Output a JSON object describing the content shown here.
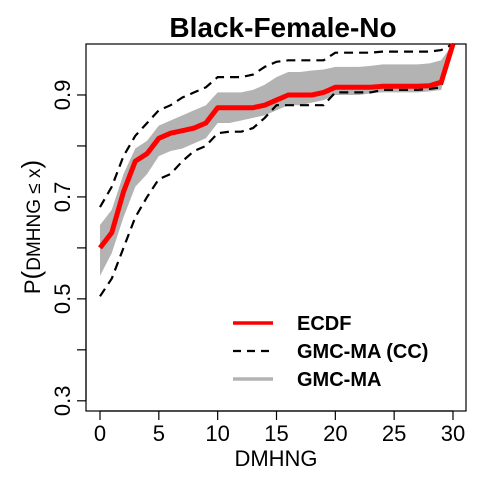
{
  "chart_data": {
    "type": "line",
    "title": "Black-Female-No",
    "xlabel": "DMHNG",
    "ylabel_prefix": "P",
    "ylabel_inner": "DMHNG ≤ x",
    "xlim": [
      0,
      30
    ],
    "ylim": [
      0.28,
      1.0
    ],
    "xticks": [
      0,
      5,
      10,
      15,
      20,
      25,
      30
    ],
    "yticks": [
      0.3,
      0.4,
      0.5,
      0.6,
      0.7,
      0.8,
      0.9
    ],
    "ytick_labels": [
      "0.3",
      "",
      "0.5",
      "",
      "0.7",
      "",
      "0.9"
    ],
    "x": [
      0,
      1,
      2,
      3,
      4,
      5,
      6,
      7,
      8,
      9,
      10,
      11,
      12,
      13,
      14,
      15,
      16,
      17,
      18,
      19,
      20,
      21,
      22,
      23,
      24,
      25,
      26,
      27,
      28,
      29,
      30
    ],
    "series": [
      {
        "name": "ECDF",
        "color": "#ff0000",
        "style": "solid",
        "values": [
          0.6,
          0.63,
          0.71,
          0.77,
          0.785,
          0.815,
          0.825,
          0.83,
          0.835,
          0.845,
          0.875,
          0.875,
          0.875,
          0.875,
          0.88,
          0.89,
          0.9,
          0.9,
          0.9,
          0.905,
          0.915,
          0.915,
          0.915,
          0.915,
          0.917,
          0.917,
          0.917,
          0.917,
          0.918,
          0.925,
          1.0
        ]
      },
      {
        "name": "GMC-MA (CC)",
        "color": "#000000",
        "style": "dashed",
        "upper": [
          0.68,
          0.72,
          0.78,
          0.82,
          0.845,
          0.87,
          0.88,
          0.895,
          0.905,
          0.915,
          0.935,
          0.935,
          0.935,
          0.94,
          0.955,
          0.965,
          0.968,
          0.968,
          0.968,
          0.968,
          0.983,
          0.983,
          0.983,
          0.983,
          0.985,
          0.985,
          0.985,
          0.985,
          0.985,
          0.988,
          1.0
        ],
        "lower": [
          0.505,
          0.54,
          0.6,
          0.66,
          0.7,
          0.735,
          0.745,
          0.77,
          0.79,
          0.8,
          0.825,
          0.828,
          0.828,
          0.835,
          0.855,
          0.88,
          0.88,
          0.88,
          0.88,
          0.88,
          0.905,
          0.905,
          0.905,
          0.905,
          0.91,
          0.91,
          0.91,
          0.91,
          0.912,
          0.915,
          1.0
        ]
      },
      {
        "name": "GMC-MA",
        "color": "#b3b3b3",
        "style": "band",
        "upper": [
          0.645,
          0.675,
          0.745,
          0.795,
          0.81,
          0.84,
          0.85,
          0.86,
          0.87,
          0.88,
          0.905,
          0.905,
          0.905,
          0.91,
          0.92,
          0.935,
          0.945,
          0.945,
          0.948,
          0.95,
          0.955,
          0.955,
          0.955,
          0.957,
          0.96,
          0.96,
          0.96,
          0.96,
          0.962,
          0.968,
          1.0
        ],
        "lower": [
          0.545,
          0.59,
          0.66,
          0.72,
          0.745,
          0.78,
          0.79,
          0.795,
          0.805,
          0.815,
          0.845,
          0.845,
          0.85,
          0.855,
          0.86,
          0.87,
          0.88,
          0.88,
          0.885,
          0.89,
          0.9,
          0.9,
          0.9,
          0.903,
          0.905,
          0.905,
          0.905,
          0.905,
          0.907,
          0.91,
          1.0
        ]
      }
    ],
    "legend": {
      "placement": "bottom-right",
      "entries": [
        "ECDF",
        "GMC-MA (CC)",
        "GMC-MA"
      ]
    },
    "grid": false
  }
}
